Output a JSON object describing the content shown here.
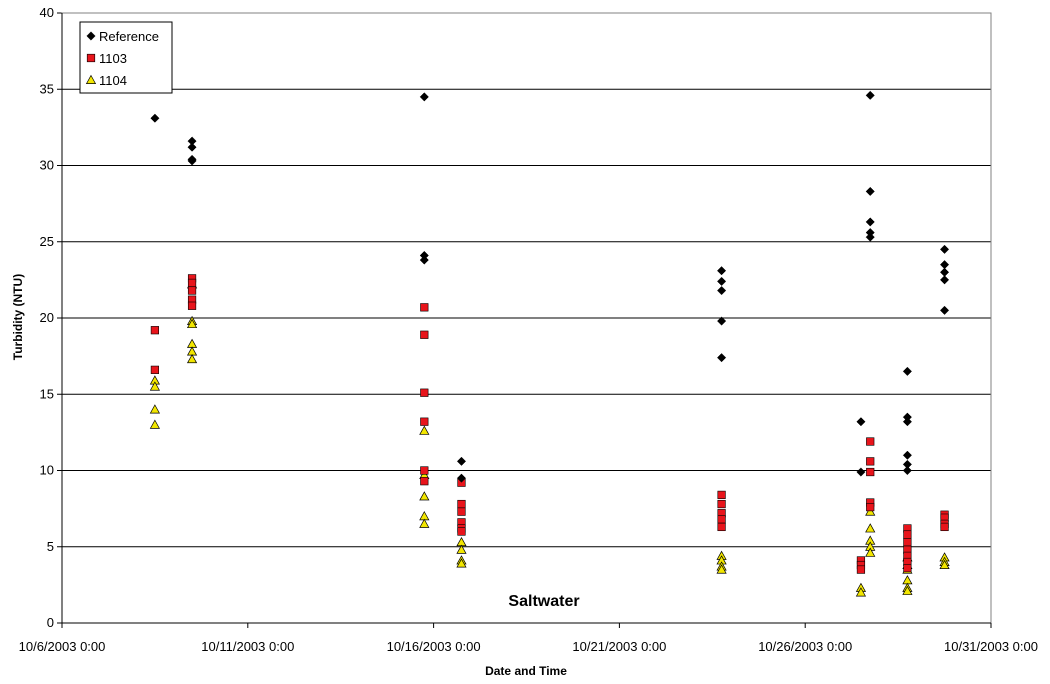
{
  "chart_data": {
    "type": "scatter",
    "title": "",
    "annotation": "Saltwater",
    "xlabel": "Date and Time",
    "ylabel": "Turbidity (NTU)",
    "xlim": [
      "2003-10-06T00:00",
      "2003-10-31T00:00"
    ],
    "ylim": [
      0,
      40
    ],
    "x_tick_labels": [
      "10/6/2003 0:00",
      "10/11/2003 0:00",
      "10/16/2003 0:00",
      "10/21/2003 0:00",
      "10/26/2003 0:00",
      "10/31/2003 0:00"
    ],
    "y_tick_labels": [
      "0",
      "5",
      "10",
      "15",
      "20",
      "25",
      "30",
      "35",
      "40"
    ],
    "grid": "horizontal",
    "legend_position": "top-left",
    "series": [
      {
        "name": "Reference",
        "marker": "diamond",
        "color": "#000000",
        "points": [
          [
            "2003-10-08T12:00",
            33.1
          ],
          [
            "2003-10-09T12:00",
            31.6
          ],
          [
            "2003-10-09T12:00",
            31.2
          ],
          [
            "2003-10-09T12:00",
            30.4
          ],
          [
            "2003-10-09T12:00",
            30.3
          ],
          [
            "2003-10-15T18:00",
            34.5
          ],
          [
            "2003-10-15T18:00",
            24.1
          ],
          [
            "2003-10-15T18:00",
            23.8
          ],
          [
            "2003-10-16T18:00",
            10.6
          ],
          [
            "2003-10-16T18:00",
            9.5
          ],
          [
            "2003-10-23T18:00",
            23.1
          ],
          [
            "2003-10-23T18:00",
            22.4
          ],
          [
            "2003-10-23T18:00",
            21.8
          ],
          [
            "2003-10-23T18:00",
            19.8
          ],
          [
            "2003-10-23T18:00",
            17.4
          ],
          [
            "2003-10-27T12:00",
            13.2
          ],
          [
            "2003-10-27T12:00",
            9.9
          ],
          [
            "2003-10-27T18:00",
            34.6
          ],
          [
            "2003-10-27T18:00",
            28.3
          ],
          [
            "2003-10-27T18:00",
            26.3
          ],
          [
            "2003-10-27T18:00",
            25.6
          ],
          [
            "2003-10-27T18:00",
            25.3
          ],
          [
            "2003-10-28T18:00",
            16.5
          ],
          [
            "2003-10-28T18:00",
            13.5
          ],
          [
            "2003-10-28T18:00",
            13.2
          ],
          [
            "2003-10-28T18:00",
            11.0
          ],
          [
            "2003-10-28T18:00",
            10.4
          ],
          [
            "2003-10-28T18:00",
            10.0
          ],
          [
            "2003-10-29T18:00",
            24.5
          ],
          [
            "2003-10-29T18:00",
            23.5
          ],
          [
            "2003-10-29T18:00",
            23.0
          ],
          [
            "2003-10-29T18:00",
            22.5
          ],
          [
            "2003-10-29T18:00",
            20.5
          ]
        ]
      },
      {
        "name": "1103",
        "marker": "square",
        "color": "#e8141b",
        "points": [
          [
            "2003-10-08T12:00",
            19.2
          ],
          [
            "2003-10-08T12:00",
            16.6
          ],
          [
            "2003-10-09T12:00",
            22.6
          ],
          [
            "2003-10-09T12:00",
            22.3
          ],
          [
            "2003-10-09T12:00",
            21.8
          ],
          [
            "2003-10-09T12:00",
            21.2
          ],
          [
            "2003-10-09T12:00",
            20.8
          ],
          [
            "2003-10-15T18:00",
            20.7
          ],
          [
            "2003-10-15T18:00",
            18.9
          ],
          [
            "2003-10-15T18:00",
            15.1
          ],
          [
            "2003-10-15T18:00",
            13.2
          ],
          [
            "2003-10-15T18:00",
            10.0
          ],
          [
            "2003-10-15T18:00",
            9.3
          ],
          [
            "2003-10-16T18:00",
            9.2
          ],
          [
            "2003-10-16T18:00",
            7.8
          ],
          [
            "2003-10-16T18:00",
            7.3
          ],
          [
            "2003-10-16T18:00",
            6.6
          ],
          [
            "2003-10-16T18:00",
            6.2
          ],
          [
            "2003-10-16T18:00",
            6.0
          ],
          [
            "2003-10-23T18:00",
            8.4
          ],
          [
            "2003-10-23T18:00",
            7.8
          ],
          [
            "2003-10-23T18:00",
            7.2
          ],
          [
            "2003-10-23T18:00",
            6.8
          ],
          [
            "2003-10-23T18:00",
            6.3
          ],
          [
            "2003-10-27T12:00",
            4.1
          ],
          [
            "2003-10-27T12:00",
            3.8
          ],
          [
            "2003-10-27T12:00",
            3.5
          ],
          [
            "2003-10-27T18:00",
            11.9
          ],
          [
            "2003-10-27T18:00",
            10.6
          ],
          [
            "2003-10-27T18:00",
            9.9
          ],
          [
            "2003-10-27T18:00",
            7.9
          ],
          [
            "2003-10-27T18:00",
            7.6
          ],
          [
            "2003-10-28T18:00",
            6.2
          ],
          [
            "2003-10-28T18:00",
            5.8
          ],
          [
            "2003-10-28T18:00",
            5.3
          ],
          [
            "2003-10-28T18:00",
            4.8
          ],
          [
            "2003-10-28T18:00",
            4.4
          ],
          [
            "2003-10-28T18:00",
            4.0
          ],
          [
            "2003-10-28T18:00",
            3.6
          ],
          [
            "2003-10-29T18:00",
            7.1
          ],
          [
            "2003-10-29T18:00",
            6.9
          ],
          [
            "2003-10-29T18:00",
            6.5
          ],
          [
            "2003-10-29T18:00",
            6.3
          ]
        ]
      },
      {
        "name": "1104",
        "marker": "triangle",
        "color": "#f2e600",
        "points": [
          [
            "2003-10-08T12:00",
            15.9
          ],
          [
            "2003-10-08T12:00",
            15.5
          ],
          [
            "2003-10-08T12:00",
            14.0
          ],
          [
            "2003-10-08T12:00",
            13.0
          ],
          [
            "2003-10-09T12:00",
            22.2
          ],
          [
            "2003-10-09T12:00",
            19.8
          ],
          [
            "2003-10-09T12:00",
            19.6
          ],
          [
            "2003-10-09T12:00",
            18.3
          ],
          [
            "2003-10-09T12:00",
            17.8
          ],
          [
            "2003-10-09T12:00",
            17.3
          ],
          [
            "2003-10-15T18:00",
            12.6
          ],
          [
            "2003-10-15T18:00",
            9.7
          ],
          [
            "2003-10-15T18:00",
            8.3
          ],
          [
            "2003-10-15T18:00",
            7.0
          ],
          [
            "2003-10-15T18:00",
            6.5
          ],
          [
            "2003-10-16T18:00",
            5.3
          ],
          [
            "2003-10-16T18:00",
            4.8
          ],
          [
            "2003-10-16T18:00",
            4.1
          ],
          [
            "2003-10-16T18:00",
            3.9
          ],
          [
            "2003-10-23T18:00",
            4.4
          ],
          [
            "2003-10-23T18:00",
            4.1
          ],
          [
            "2003-10-23T18:00",
            3.7
          ],
          [
            "2003-10-23T18:00",
            3.5
          ],
          [
            "2003-10-27T12:00",
            2.3
          ],
          [
            "2003-10-27T12:00",
            2.0
          ],
          [
            "2003-10-27T18:00",
            7.3
          ],
          [
            "2003-10-27T18:00",
            6.2
          ],
          [
            "2003-10-27T18:00",
            5.4
          ],
          [
            "2003-10-27T18:00",
            5.0
          ],
          [
            "2003-10-27T18:00",
            4.6
          ],
          [
            "2003-10-28T18:00",
            4.3
          ],
          [
            "2003-10-28T18:00",
            3.8
          ],
          [
            "2003-10-28T18:00",
            3.5
          ],
          [
            "2003-10-28T18:00",
            2.8
          ],
          [
            "2003-10-28T18:00",
            2.3
          ],
          [
            "2003-10-28T18:00",
            2.1
          ],
          [
            "2003-10-29T18:00",
            4.3
          ],
          [
            "2003-10-29T18:00",
            4.0
          ],
          [
            "2003-10-29T18:00",
            3.8
          ]
        ]
      }
    ]
  }
}
